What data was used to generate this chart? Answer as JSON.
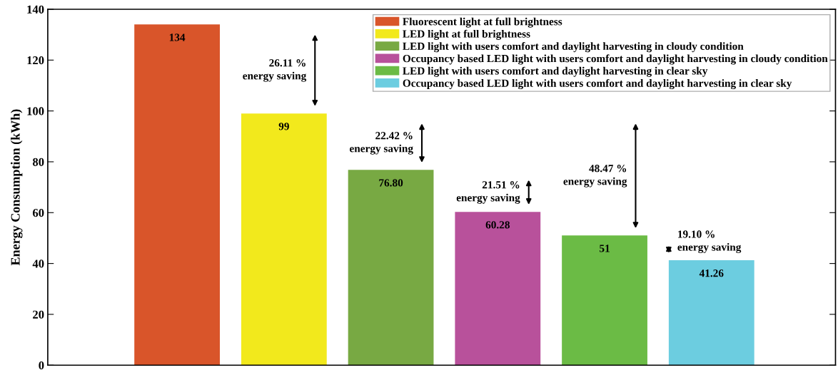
{
  "chart_data": {
    "type": "bar",
    "ylabel": "Energy Consumption (kWh)",
    "categories": [
      null,
      null,
      null,
      null,
      null,
      null
    ],
    "series": [
      {
        "name": "Fluorescent light at full brightness",
        "color": "#d9552a",
        "values": [
          134,
          null,
          null,
          null,
          null,
          null
        ],
        "value_labels": [
          "134",
          null,
          null,
          null,
          null,
          null
        ]
      },
      {
        "name": "LED light at full brightness",
        "color": "#f2e91c",
        "values": [
          null,
          99,
          null,
          null,
          null,
          null
        ],
        "value_labels": [
          null,
          "99",
          null,
          null,
          null,
          null
        ]
      },
      {
        "name": "LED light with users comfort and daylight harvesting in cloudy condition",
        "color": "#78a943",
        "values": [
          null,
          null,
          76.8,
          null,
          null,
          null
        ],
        "value_labels": [
          null,
          null,
          "76.80",
          null,
          null,
          null
        ]
      },
      {
        "name": "Occupancy based LED light with users comfort and daylight harvesting in cloudy condition",
        "color": "#b8519b",
        "values": [
          null,
          null,
          null,
          60.28,
          null,
          null
        ],
        "value_labels": [
          null,
          null,
          null,
          "60.28",
          null,
          null
        ]
      },
      {
        "name": "LED light with users comfort and daylight harvesting in clear sky",
        "color": "#6bbb45",
        "values": [
          null,
          null,
          null,
          null,
          51,
          null
        ],
        "value_labels": [
          null,
          null,
          null,
          null,
          "51",
          null
        ]
      },
      {
        "name": "Occupancy based LED light with users comfort and daylight harvesting in clear sky",
        "color": "#6ccde0",
        "values": [
          null,
          null,
          null,
          null,
          null,
          41.26
        ],
        "value_labels": [
          null,
          null,
          null,
          null,
          null,
          "41.26"
        ]
      }
    ],
    "ylim": [
      0,
      140
    ],
    "yticks": [
      0,
      20,
      40,
      60,
      80,
      100,
      120,
      140
    ],
    "grid": false,
    "legend": "top right",
    "tick_labels": "y",
    "annotations": [
      "26.11 %\nenergy saving",
      "22.42 %\nenergy saving",
      "21.51 %\nenergy saving",
      "48.47 %\nenergy saving",
      "19.10 %\nenergy saving"
    ]
  }
}
